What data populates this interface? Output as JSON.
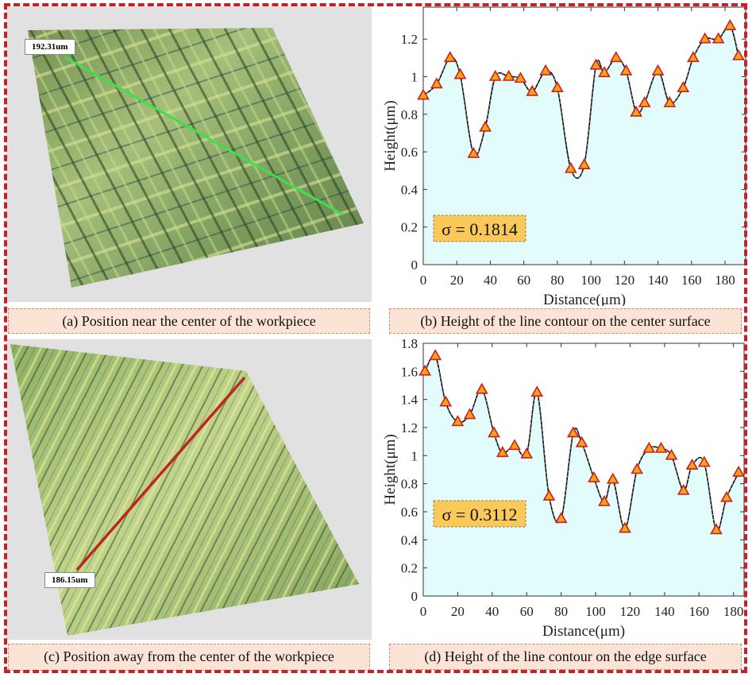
{
  "panels": {
    "a": {
      "caption": "(a) Position near the center of the workpiece",
      "length_label": "192.31um",
      "line_color": "#3be04a"
    },
    "b": {
      "caption": "(b) Height of the line contour on the center surface"
    },
    "c": {
      "caption": "(c) Position away from the center of the workpiece",
      "length_label": "186.15um",
      "line_color": "#c0261c"
    },
    "d": {
      "caption": "(d) Height of the line contour on the edge surface"
    }
  },
  "colors": {
    "fill": "#e2fbfb",
    "marker_fill": "#f6a31a",
    "marker_edge": "#cc1f1f",
    "annotation_bg": "#fbc95a",
    "frame": "#c8202a"
  },
  "chart_data": [
    {
      "type": "line",
      "title": "",
      "xlabel": "Distance(μm)",
      "ylabel": "Height(μm)",
      "xlim": [
        0,
        192.31
      ],
      "ylim": [
        0,
        1.37
      ],
      "xticks": [
        0,
        20,
        40,
        60,
        80,
        100,
        120,
        140,
        160,
        180
      ],
      "yticks": [
        0,
        0.2,
        0.4,
        0.6,
        0.8,
        1,
        1.2
      ],
      "ytick_labels": [
        "0",
        "0.2",
        "0.4",
        "0.6",
        "0.8",
        "1",
        "1.2"
      ],
      "annotation": "σ = 0.1814",
      "series": [
        {
          "name": "contour",
          "x": [
            0,
            8,
            16,
            22,
            30,
            37,
            43,
            51,
            58,
            65,
            73,
            80,
            88,
            96,
            103,
            108,
            115,
            121,
            127,
            132,
            140,
            147,
            155,
            161,
            168,
            176,
            183,
            188
          ],
          "y": [
            0.9,
            0.96,
            1.1,
            1.01,
            0.59,
            0.73,
            1.0,
            1.0,
            0.99,
            0.92,
            1.03,
            0.94,
            0.51,
            0.53,
            1.06,
            1.02,
            1.1,
            1.03,
            0.81,
            0.86,
            1.03,
            0.86,
            0.94,
            1.1,
            1.2,
            1.2,
            1.27,
            1.11
          ]
        }
      ]
    },
    {
      "type": "line",
      "title": "",
      "xlabel": "Distance(μm)",
      "ylabel": "Height(μm)",
      "xlim": [
        0,
        186.15
      ],
      "ylim": [
        0,
        1.8
      ],
      "xticks": [
        0,
        20,
        40,
        60,
        80,
        100,
        120,
        140,
        160,
        180
      ],
      "yticks": [
        0,
        0.2,
        0.4,
        0.6,
        0.8,
        1,
        1.2,
        1.4,
        1.6,
        1.8
      ],
      "ytick_labels": [
        "0",
        "0.2",
        "0.4",
        "0.6",
        "0.8",
        "1",
        "1.2",
        "1.4",
        "1.6",
        "1.8"
      ],
      "annotation": "σ = 0.3112",
      "series": [
        {
          "name": "contour",
          "x": [
            1,
            7,
            13,
            20,
            27,
            34,
            41,
            46,
            53,
            60,
            66,
            73,
            80,
            87,
            92,
            99,
            105,
            110,
            117,
            124,
            131,
            138,
            144,
            151,
            156,
            163,
            170,
            176,
            183
          ],
          "y": [
            1.6,
            1.71,
            1.38,
            1.24,
            1.29,
            1.47,
            1.16,
            1.02,
            1.07,
            1.01,
            1.45,
            0.71,
            0.55,
            1.16,
            1.09,
            0.84,
            0.67,
            0.83,
            0.48,
            0.9,
            1.05,
            1.05,
            1.0,
            0.75,
            0.93,
            0.95,
            0.47,
            0.7,
            0.88
          ]
        }
      ]
    }
  ]
}
